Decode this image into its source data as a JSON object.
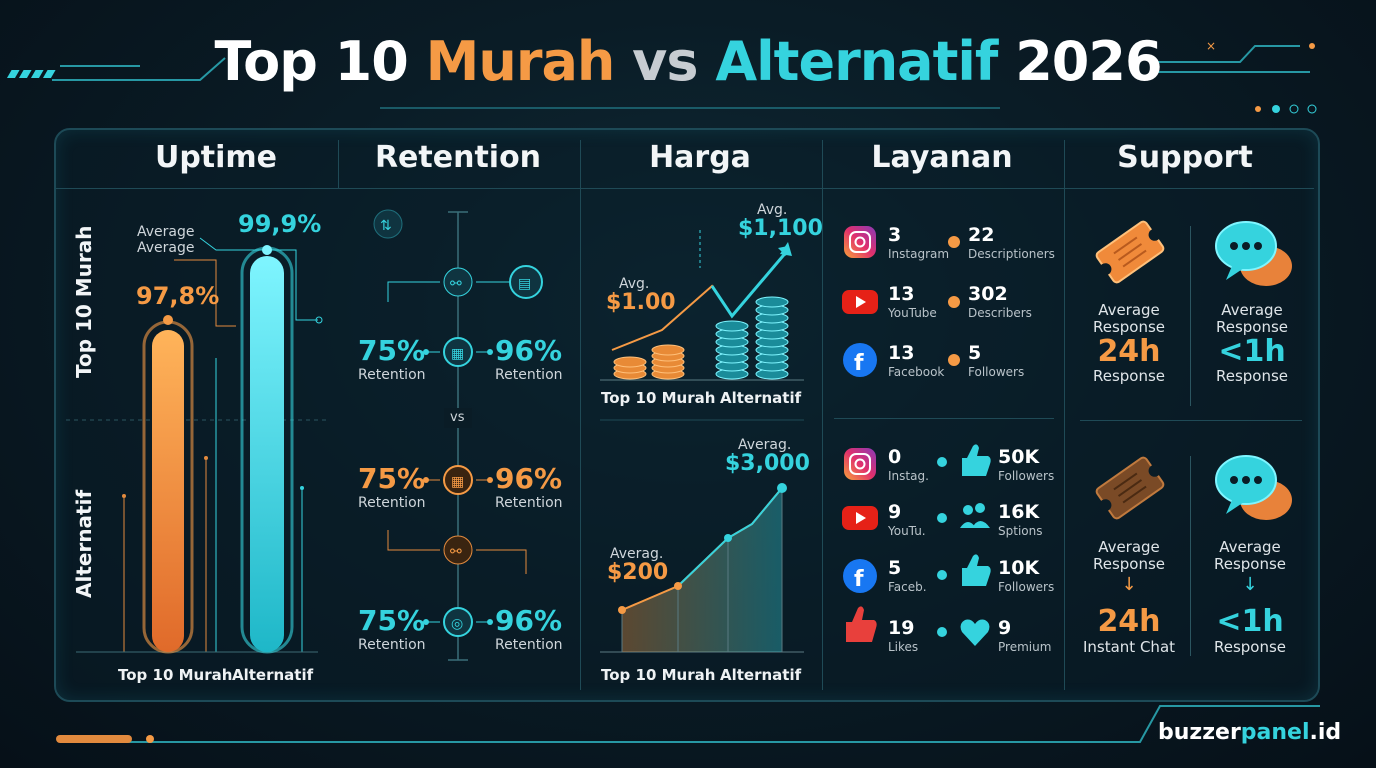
{
  "title": {
    "part1": "Top 10",
    "part2": "Murah",
    "part3": "vs",
    "part4": "Alternatif",
    "part5": "2026"
  },
  "columns": [
    "Uptime",
    "Retention",
    "Harga",
    "Layanan",
    "Support"
  ],
  "rows": [
    "Top 10 Murah",
    "Alternatif"
  ],
  "colors": {
    "orange": "#f59a45",
    "cyan": "#35d3de",
    "background": "#07131c"
  },
  "uptime": {
    "avg_label_1": "Average",
    "avg_label_2": "Average",
    "murah_value": "97,8%",
    "alt_value": "99,9%",
    "murah_pct": 97.8,
    "alt_pct": 99.9,
    "x_labels": [
      "Top 10 Murah",
      "Alternatif"
    ]
  },
  "retention": {
    "vs_label": "vs",
    "rows": [
      {
        "left": "75%",
        "left_sub": "Retention",
        "right": "96%",
        "right_sub": "Retention"
      },
      {
        "left": "75%",
        "left_sub": "Retention",
        "right": "96%",
        "right_sub": "Retention"
      },
      {
        "left": "75%",
        "left_sub": "Retention",
        "right": "96%",
        "right_sub": "Retention"
      }
    ]
  },
  "harga": {
    "top": {
      "low_label": "Avg.",
      "low_value": "$1.00",
      "high_label": "Avg.",
      "high_value": "$1,100",
      "x_labels": [
        "Top 10 Murah",
        "Alternatif"
      ]
    },
    "bottom": {
      "low_label": "Averag.",
      "low_value": "$200",
      "high_label": "Averag.",
      "high_value": "$3,000",
      "x_labels": [
        "Top 10 Murah",
        "Alternatif"
      ]
    }
  },
  "layanan": {
    "top": [
      {
        "icon": "instagram-icon",
        "num": "3",
        "name": "Instagram",
        "num2": "22",
        "name2": "Descriptioners"
      },
      {
        "icon": "youtube-icon",
        "num": "13",
        "name": "YouTube",
        "num2": "302",
        "name2": "Describers"
      },
      {
        "icon": "facebook-icon",
        "num": "13",
        "name": "Facebook",
        "num2": "5",
        "name2": "Followers"
      }
    ],
    "bottom": [
      {
        "icon": "instagram-icon",
        "num": "0",
        "name": "Instag.",
        "icon2": "thumbs-up-icon",
        "num2": "50K",
        "name2": "Followers"
      },
      {
        "icon": "youtube-icon",
        "num": "9",
        "name": "YouTu.",
        "icon2": "users-icon",
        "num2": "16K",
        "name2": "Sptions"
      },
      {
        "icon": "facebook-icon",
        "num": "5",
        "name": "Faceb.",
        "icon2": "thumbs-up-icon",
        "num2": "10K",
        "name2": "Followers"
      },
      {
        "icon": "like-hand-icon",
        "num": "19",
        "name": "Likes",
        "icon2": "heart-icon",
        "num2": "9",
        "name2": "Premium"
      }
    ]
  },
  "support": {
    "top_left": {
      "l1": "Average",
      "l2": "Response",
      "value": "24h",
      "sub": "Response"
    },
    "top_right": {
      "l1": "Average",
      "l2": "Response",
      "value": "<1h",
      "sub": "Response"
    },
    "bottom_left": {
      "l1": "Average",
      "l2": "Response",
      "arrow": "↓",
      "value": "24h",
      "sub": "Instant Chat"
    },
    "bottom_right": {
      "l1": "Average",
      "l2": "Response",
      "arrow": "↓",
      "value": "<1h",
      "sub": "Response"
    }
  },
  "footer": {
    "brand_a": "buzzer",
    "brand_b": "panel",
    "brand_c": ".id"
  }
}
